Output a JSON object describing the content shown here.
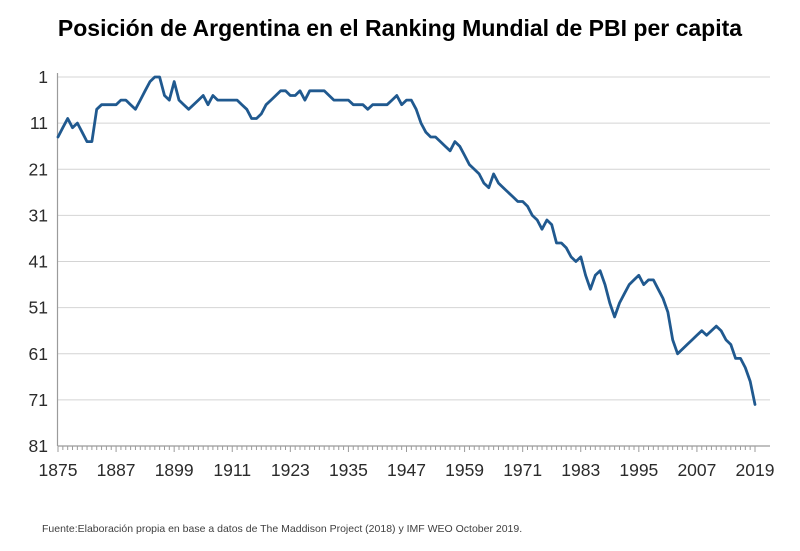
{
  "page": {
    "title": "Posición de Argentina en el Ranking Mundial de PBI per capita",
    "source_note": "Fuente:Elaboración propia en base a datos de The Maddison Project (2018) y IMF WEO October 2019."
  },
  "chart_data": {
    "type": "line",
    "title": "Posición de Argentina en el Ranking Mundial de PBI per capita",
    "xlabel": "",
    "ylabel": "",
    "x_ticks": [
      1875,
      1887,
      1899,
      1911,
      1923,
      1935,
      1947,
      1959,
      1971,
      1983,
      1995,
      2007,
      2019
    ],
    "y_ticks": [
      1,
      11,
      21,
      31,
      41,
      51,
      61,
      71,
      81
    ],
    "xlim": [
      1875,
      2019
    ],
    "ylim": [
      1,
      81
    ],
    "y_axis_inverted": true,
    "grid": "horizontal",
    "legend": "none",
    "line_color": "#20598f",
    "grid_color": "#d4d4d4",
    "axis_color": "#9b9b9b",
    "series": [
      {
        "name": "Posición de Argentina en el ranking mundial de PBI per capita",
        "year_start": 1875,
        "year_step": 1,
        "values": [
          14,
          12,
          10,
          12,
          11,
          13,
          15,
          15,
          8,
          7,
          7,
          7,
          7,
          6,
          6,
          7,
          8,
          6,
          4,
          2,
          1,
          1,
          5,
          6,
          2,
          6,
          7,
          8,
          7,
          6,
          5,
          7,
          5,
          6,
          6,
          6,
          6,
          6,
          7,
          8,
          10,
          10,
          9,
          7,
          6,
          5,
          4,
          4,
          5,
          5,
          4,
          6,
          4,
          4,
          4,
          4,
          5,
          6,
          6,
          6,
          6,
          7,
          7,
          7,
          8,
          7,
          7,
          7,
          7,
          6,
          5,
          7,
          6,
          6,
          8,
          11,
          13,
          14,
          14,
          15,
          16,
          17,
          15,
          16,
          18,
          20,
          21,
          22,
          24,
          25,
          22,
          24,
          25,
          26,
          27,
          28,
          28,
          29,
          31,
          32,
          34,
          32,
          33,
          37,
          37,
          38,
          40,
          41,
          40,
          44,
          47,
          44,
          43,
          46,
          50,
          53,
          50,
          48,
          46,
          45,
          44,
          46,
          45,
          45,
          47,
          49,
          52,
          58,
          61,
          60,
          59,
          58,
          57,
          56,
          57,
          56,
          55,
          56,
          58,
          59,
          62,
          62,
          64,
          67,
          72
        ]
      }
    ]
  }
}
